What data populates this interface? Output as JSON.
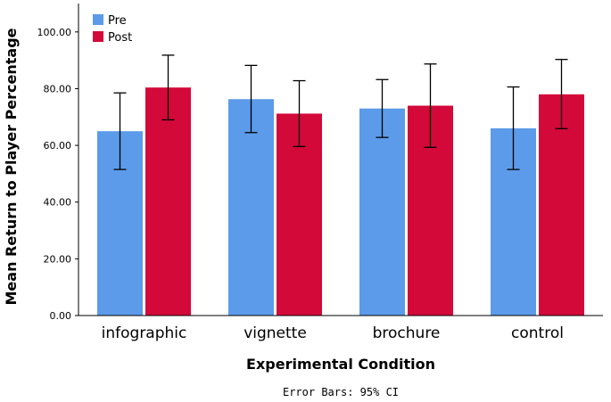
{
  "chart_data": {
    "type": "bar",
    "title": "",
    "xlabel": "Experimental Condition",
    "ylabel": "Mean Return to Player Percentage",
    "caption": "Error Bars: 95% CI",
    "ylim": [
      0,
      110
    ],
    "yticks": [
      "0.00",
      "20.00",
      "40.00",
      "60.00",
      "80.00",
      "100.00"
    ],
    "ytick_values": [
      0,
      20,
      40,
      60,
      80,
      100
    ],
    "categories": [
      "infographic",
      "vignette",
      "brochure",
      "control"
    ],
    "legend_position": "top-left",
    "series": [
      {
        "name": "Pre",
        "color": "#5b9bea",
        "values": [
          65.0,
          76.3,
          73.0,
          66.0
        ],
        "ci_low": [
          51.5,
          64.5,
          62.8,
          51.5
        ],
        "ci_high": [
          78.5,
          88.2,
          83.2,
          80.6
        ]
      },
      {
        "name": "Post",
        "color": "#d3093a",
        "values": [
          80.4,
          71.2,
          74.0,
          78.0
        ],
        "ci_low": [
          69.0,
          59.6,
          59.3,
          65.9
        ],
        "ci_high": [
          91.8,
          82.8,
          88.7,
          90.3
        ]
      }
    ]
  }
}
